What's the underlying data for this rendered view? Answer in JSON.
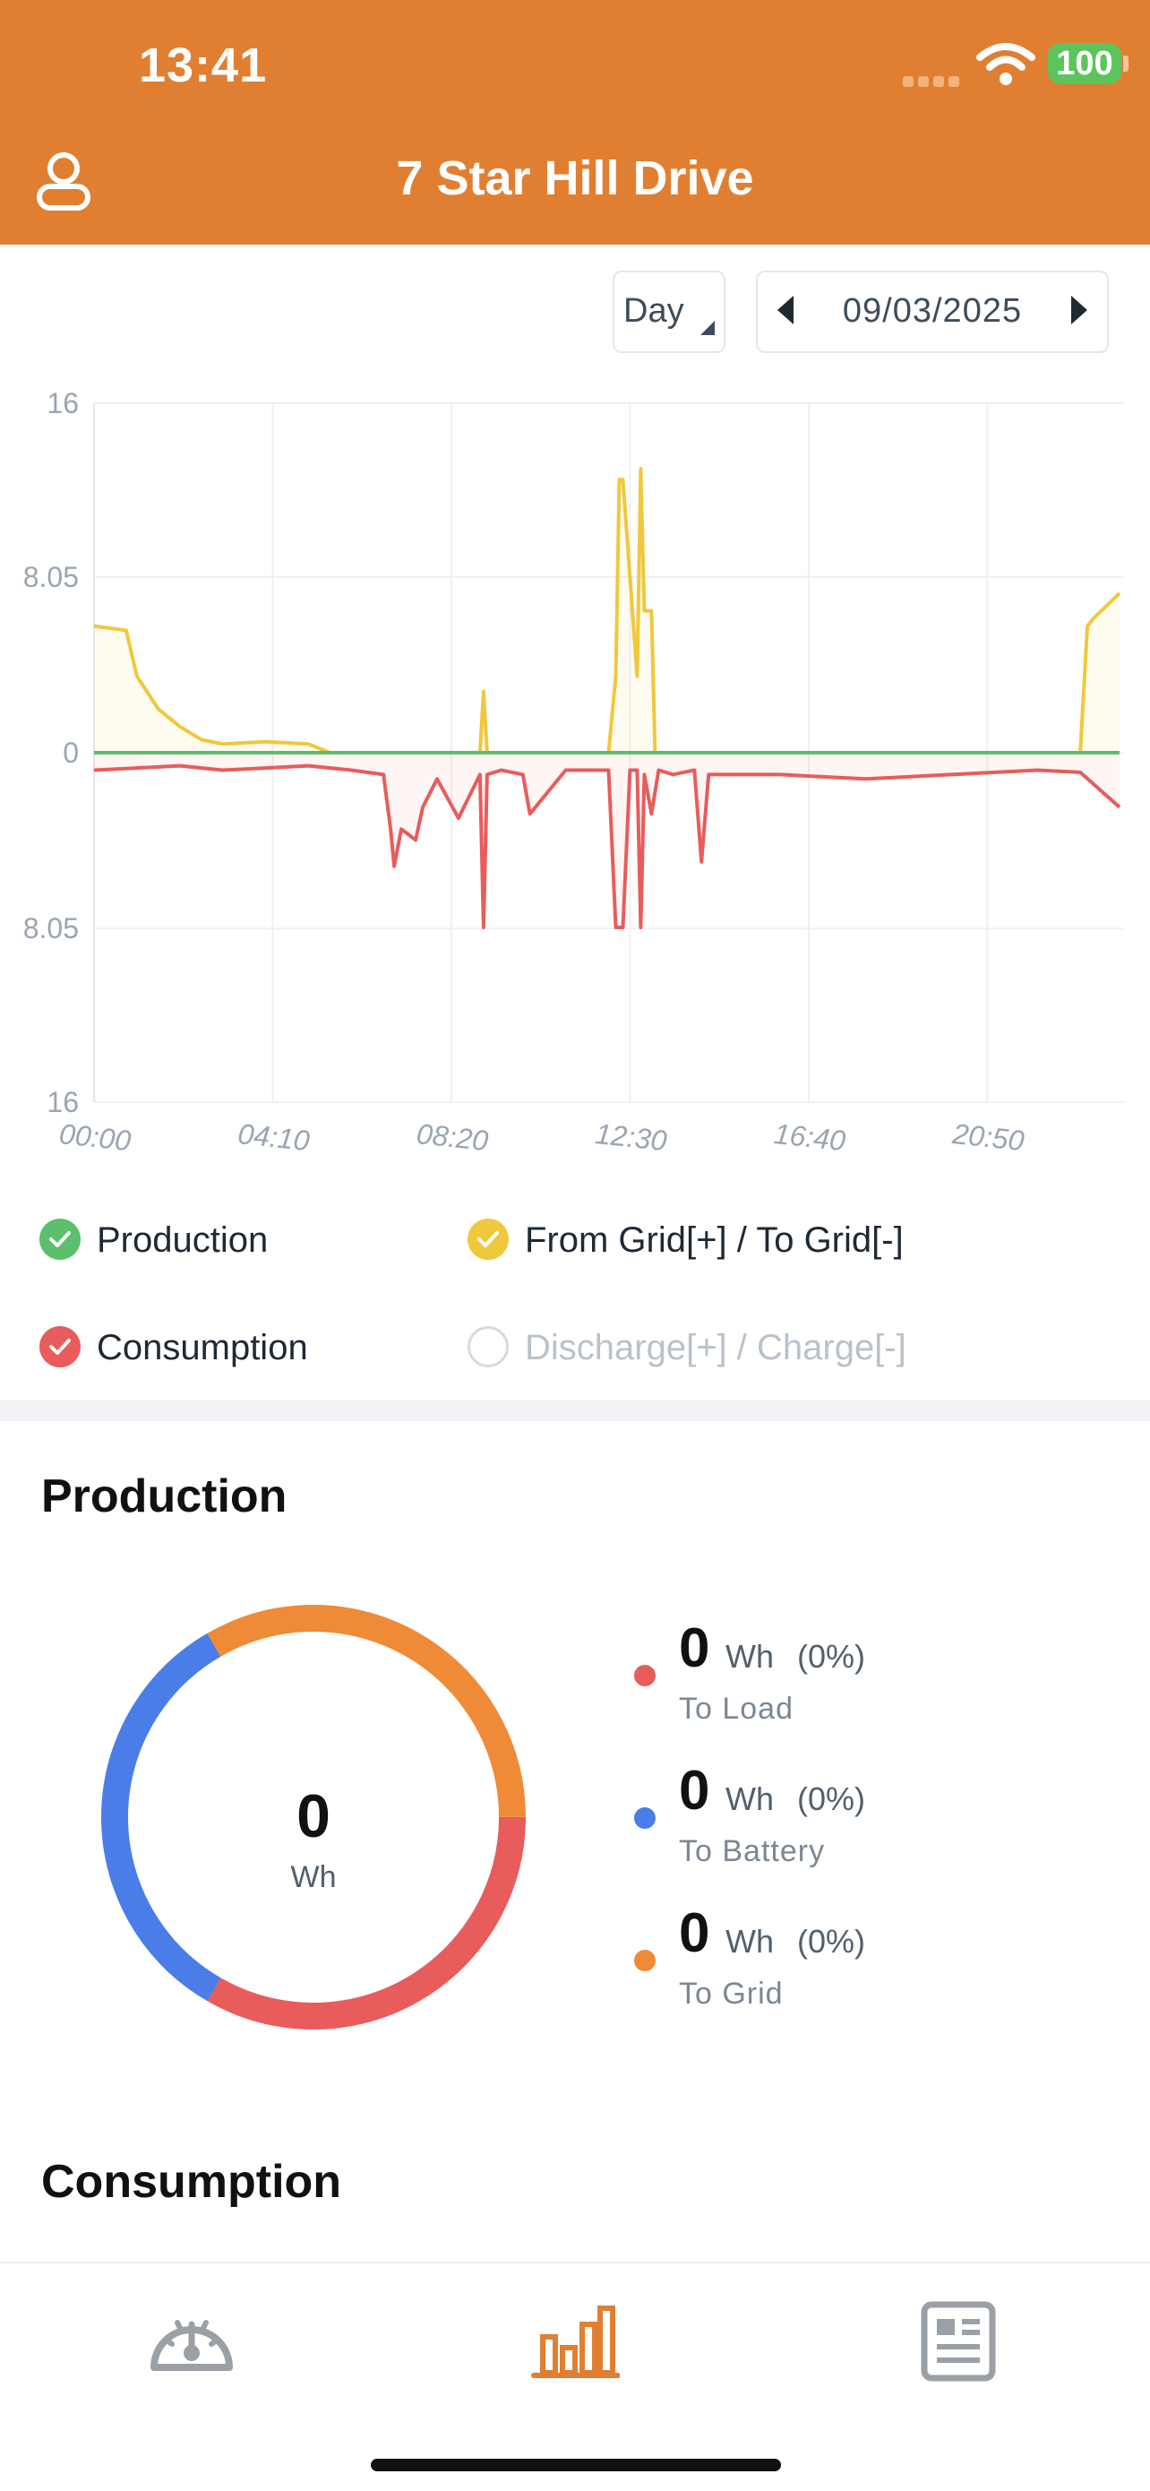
{
  "status_bar": {
    "time": "13:41",
    "battery": "100"
  },
  "header": {
    "title": "7 Star Hill Drive",
    "user_icon": "user-icon"
  },
  "controls": {
    "period": "Day",
    "date": "09/03/2025"
  },
  "colors": {
    "accent": "#e07f32",
    "production": "#5cbf6d",
    "consumption": "#e85c5c",
    "grid": "#f0c83c",
    "battery": "#4a7de8",
    "to_grid": "#ef8a37"
  },
  "chart_data": {
    "type": "line",
    "y_ticks": [
      "16",
      "8.05",
      "0",
      "8.05",
      "16"
    ],
    "x_ticks": [
      "00:00",
      "04:10",
      "08:20",
      "12:30",
      "16:40",
      "20:50"
    ],
    "ylim": [
      -16,
      16
    ],
    "grid": true,
    "legend_placement": "bottom",
    "series": [
      {
        "name": "Production",
        "visible": true,
        "x": [
          "00:00",
          "23:55"
        ],
        "values": [
          0,
          0
        ]
      },
      {
        "name": "From Grid[+] / To Grid[-]",
        "visible": true,
        "x": [
          "00:00",
          "00:45",
          "01:00",
          "01:30",
          "02:00",
          "02:30",
          "03:00",
          "04:00",
          "05:00",
          "05:30",
          "06:00",
          "07:00",
          "08:00",
          "09:00",
          "09:05",
          "09:10",
          "10:00",
          "12:00",
          "12:10",
          "12:15",
          "12:20",
          "12:40",
          "12:45",
          "12:50",
          "13:00",
          "13:05",
          "13:15",
          "13:30",
          "14:00",
          "16:00",
          "20:00",
          "23:00",
          "23:10",
          "23:20",
          "23:55"
        ],
        "values": [
          5.8,
          5.6,
          3.5,
          2.0,
          1.2,
          0.6,
          0.4,
          0.5,
          0.4,
          0,
          0,
          0,
          0,
          0,
          2.8,
          0,
          0,
          0,
          3.5,
          12.5,
          12.5,
          3.5,
          13.0,
          6.5,
          6.5,
          0,
          0,
          0,
          0,
          0,
          0,
          0,
          5.8,
          6.2,
          7.3
        ]
      },
      {
        "name": "Consumption",
        "visible": true,
        "x": [
          "00:00",
          "01:00",
          "02:00",
          "03:00",
          "04:00",
          "05:00",
          "06:00",
          "06:45",
          "06:55",
          "07:00",
          "07:10",
          "07:30",
          "07:40",
          "08:00",
          "08:30",
          "09:00",
          "09:05",
          "09:10",
          "09:30",
          "10:00",
          "10:10",
          "11:00",
          "12:00",
          "12:10",
          "12:20",
          "12:30",
          "12:40",
          "12:45",
          "12:50",
          "13:00",
          "13:10",
          "13:30",
          "14:00",
          "14:10",
          "14:20",
          "15:00",
          "16:00",
          "18:00",
          "20:00",
          "22:00",
          "23:00",
          "23:55"
        ],
        "values": [
          -0.8,
          -0.7,
          -0.6,
          -0.8,
          -0.7,
          -0.6,
          -0.8,
          -1.0,
          -3.5,
          -5.2,
          -3.5,
          -4.0,
          -2.5,
          -1.2,
          -3.0,
          -1.0,
          -8.0,
          -1.0,
          -0.8,
          -1.0,
          -2.8,
          -0.8,
          -0.8,
          -8.0,
          -8.0,
          -0.8,
          -0.8,
          -8.0,
          -1.0,
          -2.8,
          -0.8,
          -1.0,
          -0.8,
          -5.0,
          -1.0,
          -1.0,
          -1.0,
          -1.2,
          -1.0,
          -0.8,
          -0.9,
          -2.5
        ]
      },
      {
        "name": "Discharge[+] / Charge[-]",
        "visible": false,
        "values": []
      }
    ]
  },
  "legend": [
    {
      "label": "Production",
      "state": "on",
      "color": "#5cbf6d"
    },
    {
      "label": "From Grid[+] / To Grid[-]",
      "state": "on",
      "color": "#f0c83c"
    },
    {
      "label": "Consumption",
      "state": "on",
      "color": "#e85c5c"
    },
    {
      "label": "Discharge[+] / Charge[-]",
      "state": "off",
      "color": "#d6dbe0"
    }
  ],
  "production": {
    "title": "Production",
    "total_value": "0",
    "total_unit": "Wh",
    "donut_segments": [
      {
        "name": "To Load",
        "share": 0.3333,
        "color": "#e85c5c"
      },
      {
        "name": "To Battery",
        "share": 0.3333,
        "color": "#4a7de8"
      },
      {
        "name": "To Grid",
        "share": 0.3333,
        "color": "#ef8a37"
      }
    ],
    "stats": [
      {
        "value": "0",
        "unit": "Wh",
        "pct": "(0%)",
        "label": "To Load",
        "color": "#e85c5c"
      },
      {
        "value": "0",
        "unit": "Wh",
        "pct": "(0%)",
        "label": "To Battery",
        "color": "#4a7de8"
      },
      {
        "value": "0",
        "unit": "Wh",
        "pct": "(0%)",
        "label": "To Grid",
        "color": "#ef8a37"
      }
    ]
  },
  "consumption": {
    "title": "Consumption"
  },
  "tabbar": {
    "items": [
      {
        "icon": "gauge-icon",
        "active": false
      },
      {
        "icon": "bar-chart-icon",
        "active": true
      },
      {
        "icon": "report-icon",
        "active": false
      }
    ]
  }
}
